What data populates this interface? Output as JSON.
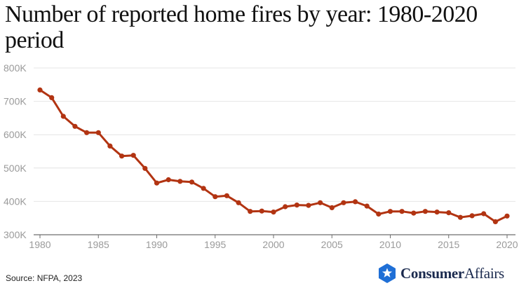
{
  "title": "Number of reported home fires by year: 1980-2020 period",
  "source": "Source: NFPA, 2023",
  "logo": {
    "bold_part": "Consumer",
    "regular_part": "Affairs",
    "icon": "shield-star-icon",
    "color": "#1b2a4e",
    "badge_color": "#1f6fd6"
  },
  "colors": {
    "line": "#b23412",
    "grid": "#e4e4e4",
    "tick_text": "#9a9a9a"
  },
  "chart_data": {
    "type": "line",
    "title": "Number of reported home fires by year: 1980-2020 period",
    "xlabel": "",
    "ylabel": "",
    "x": [
      1980,
      1981,
      1982,
      1983,
      1984,
      1985,
      1986,
      1987,
      1988,
      1989,
      1990,
      1991,
      1992,
      1993,
      1994,
      1995,
      1996,
      1997,
      1998,
      1999,
      2000,
      2001,
      2002,
      2003,
      2004,
      2005,
      2006,
      2007,
      2008,
      2009,
      2010,
      2011,
      2012,
      2013,
      2014,
      2015,
      2016,
      2017,
      2018,
      2019,
      2020
    ],
    "series": [
      {
        "values": [
          734000,
          711000,
          655000,
          625000,
          606000,
          606000,
          566000,
          536000,
          538000,
          499000,
          455000,
          465000,
          460000,
          458000,
          439000,
          414000,
          417000,
          396000,
          370000,
          371000,
          368000,
          384000,
          389000,
          388000,
          396000,
          381000,
          396000,
          399000,
          386000,
          362000,
          370000,
          370000,
          365000,
          370000,
          368000,
          366000,
          352000,
          357000,
          363000,
          339000,
          356000
        ],
        "color": "#b23412"
      }
    ],
    "xlim": [
      1980,
      2020
    ],
    "ylim": [
      300000,
      800000
    ],
    "x_ticks": [
      1980,
      1985,
      1990,
      1995,
      2000,
      2005,
      2010,
      2015,
      2020
    ],
    "x_tick_labels": [
      "1980",
      "1985",
      "1990",
      "1995",
      "2000",
      "2005",
      "2010",
      "2015",
      "2020"
    ],
    "y_ticks": [
      300000,
      400000,
      500000,
      600000,
      700000,
      800000
    ],
    "y_tick_labels": [
      "300K",
      "400K",
      "500K",
      "600K",
      "700K",
      "800K"
    ],
    "grid": true,
    "legend": "none"
  }
}
